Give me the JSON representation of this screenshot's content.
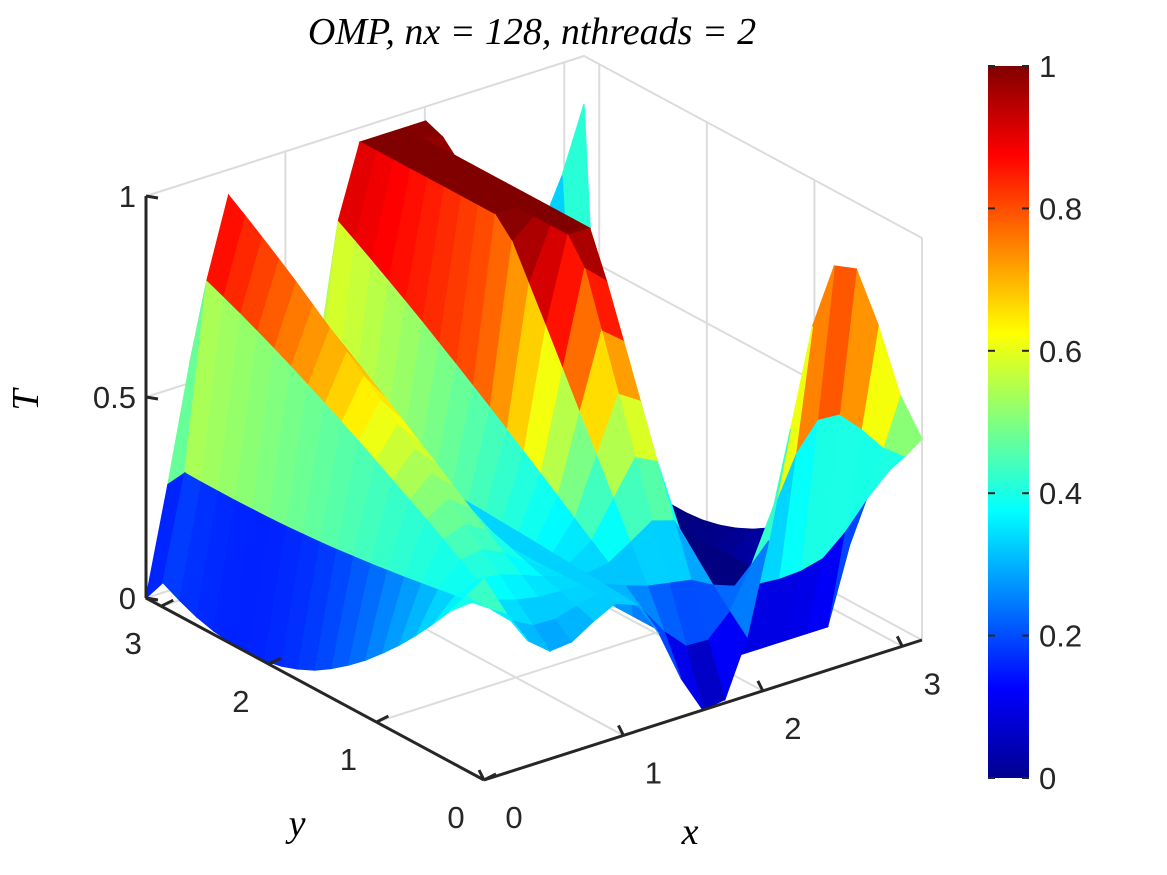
{
  "chart_data": {
    "type": "surface",
    "title": "OMP, nx = 128, nthreads = 2",
    "xlabel": "x",
    "ylabel": "y",
    "zlabel": "T",
    "xlim": [
      0,
      3.14159
    ],
    "ylim": [
      0,
      3.14159
    ],
    "zlim": [
      0,
      1
    ],
    "x_ticks": [
      "0",
      "1",
      "2",
      "3"
    ],
    "y_ticks": [
      "0",
      "1",
      "2",
      "3"
    ],
    "z_ticks": [
      "0",
      "0.5",
      "1"
    ],
    "grid": true,
    "colormap": "jet",
    "colorbar": {
      "ticks": [
        "0",
        "0.2",
        "0.4",
        "0.6",
        "0.8",
        "1"
      ],
      "range": [
        0,
        1
      ]
    },
    "grid_size": [
      21,
      21
    ],
    "surface": {
      "x": [
        0,
        0.1571,
        0.3142,
        0.4712,
        0.6283,
        0.7854,
        0.9425,
        1.0996,
        1.2566,
        1.4137,
        1.5708,
        1.7279,
        1.885,
        2.042,
        2.1991,
        2.3562,
        2.5133,
        2.6704,
        2.8274,
        2.9845,
        3.1416
      ],
      "y": [
        0,
        0.1571,
        0.3142,
        0.4712,
        0.6283,
        0.7854,
        0.9425,
        1.0996,
        1.2566,
        1.4137,
        1.5708,
        1.7279,
        1.885,
        2.042,
        2.1991,
        2.3562,
        2.5133,
        2.6704,
        2.8274,
        2.9845,
        3.1416
      ],
      "z_rows_by_y": [
        [
          0.5,
          0.398,
          0.312,
          0.269,
          0.274,
          0.308,
          0.335,
          0.314,
          0.225,
          0.096,
          0.0,
          0.009,
          0.144,
          0.369,
          0.629,
          0.867,
          1.0,
          0.975,
          0.818,
          0.627,
          0.5
        ],
        [
          0.436,
          0.388,
          0.339,
          0.309,
          0.307,
          0.322,
          0.334,
          0.317,
          0.262,
          0.189,
          0.136,
          0.133,
          0.186,
          0.287,
          0.414,
          0.529,
          0.596,
          0.592,
          0.539,
          0.475,
          0.435
        ],
        [
          0.375,
          0.38,
          0.367,
          0.35,
          0.339,
          0.336,
          0.334,
          0.32,
          0.298,
          0.28,
          0.27,
          0.26,
          0.23,
          0.21,
          0.2,
          0.195,
          0.198,
          0.212,
          0.259,
          0.322,
          0.374
        ],
        [
          0.321,
          0.372,
          0.395,
          0.39,
          0.372,
          0.35,
          0.333,
          0.323,
          0.332,
          0.366,
          0.402,
          0.385,
          0.278,
          0.134,
          0.0,
          0.0,
          0.0,
          0.0,
          0.0,
          0.185,
          0.32
        ],
        [
          0.27,
          0.365,
          0.422,
          0.43,
          0.404,
          0.364,
          0.332,
          0.326,
          0.365,
          0.452,
          0.537,
          0.51,
          0.326,
          0.07,
          0.0,
          0.0,
          0.0,
          0.0,
          0.0,
          0.062,
          0.268
        ],
        [
          0.223,
          0.358,
          0.45,
          0.47,
          0.437,
          0.379,
          0.331,
          0.329,
          0.397,
          0.536,
          0.672,
          0.637,
          0.375,
          0.0,
          0.0,
          0.0,
          0.0,
          0.0,
          0.0,
          0.0,
          0.222
        ],
        [
          0.18,
          0.351,
          0.477,
          0.51,
          0.47,
          0.393,
          0.33,
          0.332,
          0.43,
          0.62,
          0.807,
          0.764,
          0.424,
          0.0,
          0.0,
          0.0,
          0.0,
          0.0,
          0.0,
          0.0,
          0.18
        ],
        [
          0.14,
          0.345,
          0.503,
          0.549,
          0.503,
          0.408,
          0.33,
          0.335,
          0.463,
          0.705,
          0.94,
          0.89,
          0.473,
          0.0,
          0.0,
          0.0,
          0.0,
          0.0,
          0.0,
          0.0,
          0.141
        ],
        [
          0.105,
          0.339,
          0.529,
          0.588,
          0.536,
          0.422,
          0.33,
          0.337,
          0.495,
          0.789,
          1.0,
          1.0,
          0.521,
          0.0,
          0.0,
          0.0,
          0.0,
          0.0,
          0.0,
          0.0,
          0.106
        ],
        [
          0.074,
          0.334,
          0.555,
          0.627,
          0.567,
          0.437,
          0.33,
          0.34,
          0.527,
          0.872,
          1.0,
          1.0,
          0.569,
          0.0,
          0.0,
          0.0,
          0.0,
          0.0,
          0.0,
          0.0,
          0.075
        ],
        [
          0.047,
          0.329,
          0.581,
          0.665,
          0.599,
          0.451,
          0.33,
          0.342,
          0.559,
          0.955,
          1.0,
          1.0,
          0.617,
          0.0,
          0.0,
          0.0,
          0.0,
          0.0,
          0.0,
          0.0,
          0.049
        ],
        [
          0.027,
          0.325,
          0.605,
          0.703,
          0.63,
          0.465,
          0.33,
          0.345,
          0.59,
          1.0,
          1.0,
          1.0,
          0.665,
          0.0,
          0.0,
          0.0,
          0.0,
          0.0,
          0.0,
          0.0,
          0.029
        ],
        [
          0.012,
          0.322,
          0.629,
          0.74,
          0.661,
          0.479,
          0.33,
          0.347,
          0.621,
          1.0,
          1.0,
          1.0,
          0.712,
          0.0,
          0.0,
          0.0,
          0.0,
          0.0,
          0.0,
          0.0,
          0.014
        ],
        [
          0.003,
          0.319,
          0.652,
          0.776,
          0.69,
          0.493,
          0.33,
          0.35,
          0.651,
          1.0,
          1.0,
          1.0,
          0.759,
          0.0,
          0.0,
          0.0,
          0.0,
          0.0,
          0.0,
          0.0,
          0.004
        ],
        [
          0.0,
          0.317,
          0.675,
          0.811,
          0.719,
          0.506,
          0.33,
          0.352,
          0.681,
          1.0,
          1.0,
          1.0,
          0.805,
          0.0,
          0.0,
          0.0,
          0.0,
          0.0,
          0.0,
          0.0,
          0.0
        ],
        [
          0.002,
          0.316,
          0.697,
          0.846,
          0.748,
          0.52,
          0.33,
          0.355,
          0.71,
          1.0,
          1.0,
          1.0,
          0.851,
          0.0,
          0.0,
          0.0,
          0.0,
          0.0,
          0.0,
          0.0,
          0.001
        ],
        [
          0.009,
          0.315,
          0.718,
          0.879,
          0.776,
          0.533,
          0.33,
          0.357,
          0.738,
          1.0,
          1.0,
          1.0,
          0.896,
          0.0,
          0.0,
          0.0,
          0.0,
          0.0,
          0.0,
          0.0,
          0.007
        ],
        [
          0.021,
          0.315,
          0.738,
          0.911,
          0.803,
          0.546,
          0.33,
          0.359,
          0.766,
          1.0,
          1.0,
          1.0,
          0.94,
          0.0,
          0.0,
          0.0,
          0.0,
          0.0,
          0.0,
          0.0,
          0.019
        ],
        [
          0.039,
          0.315,
          0.757,
          0.942,
          0.83,
          0.559,
          0.33,
          0.361,
          0.793,
          1.0,
          1.0,
          1.0,
          0.983,
          0.0,
          0.0,
          0.0,
          0.0,
          0.0,
          0.0,
          0.0,
          0.035
        ],
        [
          0.061,
          0.316,
          0.775,
          0.972,
          0.855,
          0.571,
          0.33,
          0.364,
          0.819,
          1.0,
          1.0,
          1.0,
          1.0,
          0.0,
          0.0,
          0.0,
          0.0,
          0.0,
          0.0,
          0.0,
          0.057
        ],
        [
          0.0,
          0.265,
          0.549,
          0.741,
          0.764,
          0.691,
          0.59,
          0.52,
          0.51,
          0.55,
          0.59,
          0.62,
          0.64,
          0.62,
          0.6,
          0.58,
          0.565,
          0.57,
          0.6,
          0.72,
          0.88
        ]
      ]
    }
  }
}
